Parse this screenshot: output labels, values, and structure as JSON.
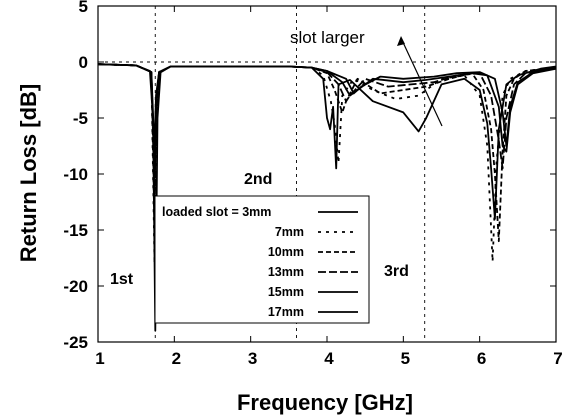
{
  "chart_data": {
    "type": "line",
    "xlabel": "Frequency [GHz]",
    "ylabel": "Return Loss [dB]",
    "xlim": [
      1,
      7
    ],
    "ylim": [
      -25,
      5
    ],
    "x_ticks": [
      1,
      2,
      3,
      4,
      5,
      6,
      7
    ],
    "y_ticks": [
      5,
      0,
      -5,
      -10,
      -15,
      -20,
      -25
    ],
    "grid": false,
    "reference_lines": {
      "vertical_x": [
        1.75,
        3.6,
        5.28
      ],
      "horizontal_y": [
        0
      ]
    },
    "annotations": {
      "first": "1st",
      "second": "2nd",
      "third": "3rd",
      "trend": "slot larger"
    },
    "legend": {
      "position": "center-left",
      "entries": [
        {
          "label": "loaded slot = 3mm",
          "dash": "solid"
        },
        {
          "label": "7mm",
          "dash": "dash-sparse"
        },
        {
          "label": "10mm",
          "dash": "dash"
        },
        {
          "label": "13mm",
          "dash": "dash-long"
        },
        {
          "label": "15mm",
          "dash": "solid"
        },
        {
          "label": "17mm",
          "dash": "solid"
        }
      ]
    },
    "series": [
      {
        "x": [
          1.0,
          1.5,
          1.68,
          1.72,
          1.75,
          1.78,
          1.82,
          1.95,
          2.5,
          3.0,
          3.5,
          3.8,
          3.95,
          4.0,
          4.04,
          4.08,
          4.12,
          4.15,
          4.3,
          4.6,
          5.0,
          5.2,
          5.3,
          5.5,
          5.8,
          6.0,
          6.1,
          6.15,
          6.2,
          6.25,
          6.35,
          6.5,
          6.8,
          7.0
        ],
        "y": [
          -0.2,
          -0.3,
          -0.8,
          -5,
          -24,
          -5,
          -0.9,
          -0.4,
          -0.4,
          -0.4,
          -0.4,
          -0.5,
          -1.5,
          -5,
          -6,
          -4,
          -9.5,
          -2,
          -1.6,
          -3.5,
          -4.5,
          -6.2,
          -5,
          -2,
          -1.5,
          -2.5,
          -5.5,
          -9.5,
          -14,
          -6,
          -2,
          -1.2,
          -0.6,
          -0.4
        ]
      },
      {
        "x": [
          1.0,
          1.5,
          1.7,
          1.74,
          1.76,
          1.8,
          1.95,
          2.5,
          3.0,
          3.5,
          3.8,
          3.95,
          4.05,
          4.1,
          4.15,
          4.2,
          4.35,
          4.6,
          4.9,
          5.2,
          5.5,
          5.8,
          6.0,
          6.1,
          6.17,
          6.22,
          6.3,
          6.4,
          6.6,
          7.0
        ],
        "y": [
          -0.2,
          -0.3,
          -0.9,
          -18,
          -6,
          -1.0,
          -0.4,
          -0.4,
          -0.4,
          -0.4,
          -0.5,
          -1.2,
          -3.5,
          -5.5,
          -9,
          -3,
          -1.5,
          -2.5,
          -3.3,
          -3,
          -1.5,
          -1.2,
          -3,
          -7.5,
          -17.8,
          -9,
          -3,
          -1.5,
          -0.8,
          -0.5
        ]
      },
      {
        "x": [
          1.0,
          1.5,
          1.7,
          1.74,
          1.76,
          1.8,
          1.95,
          2.5,
          3.0,
          3.5,
          3.8,
          4.0,
          4.1,
          4.2,
          4.25,
          4.4,
          4.7,
          5.0,
          5.3,
          5.6,
          5.9,
          6.05,
          6.15,
          6.2,
          6.25,
          6.3,
          6.35,
          6.45,
          6.6,
          7.0
        ],
        "y": [
          -0.2,
          -0.3,
          -0.9,
          -15,
          -5,
          -1.0,
          -0.4,
          -0.4,
          -0.4,
          -0.4,
          -0.5,
          -1.0,
          -2.5,
          -4.5,
          -3.5,
          -1.5,
          -2.8,
          -2.5,
          -2.2,
          -1.5,
          -1.0,
          -2.5,
          -6,
          -10,
          -16,
          -8,
          -3,
          -1.5,
          -0.8,
          -0.5
        ]
      },
      {
        "x": [
          1.0,
          1.5,
          1.7,
          1.74,
          1.76,
          1.8,
          1.95,
          2.5,
          3.0,
          3.5,
          3.8,
          4.0,
          4.15,
          4.25,
          4.3,
          4.5,
          4.8,
          5.1,
          5.4,
          5.7,
          6.0,
          6.15,
          6.25,
          6.3,
          6.35,
          6.45,
          6.6,
          7.0
        ],
        "y": [
          -0.2,
          -0.3,
          -0.9,
          -12,
          -4,
          -0.9,
          -0.4,
          -0.4,
          -0.4,
          -0.4,
          -0.5,
          -0.9,
          -2.0,
          -3.5,
          -3.0,
          -1.5,
          -2.2,
          -2.0,
          -1.8,
          -1.2,
          -1.0,
          -3,
          -7,
          -9.5,
          -5,
          -2,
          -1,
          -0.5
        ]
      },
      {
        "x": [
          1.0,
          1.5,
          1.7,
          1.74,
          1.76,
          1.8,
          1.95,
          2.5,
          3.0,
          3.5,
          3.8,
          4.0,
          4.2,
          4.3,
          4.4,
          4.6,
          5.0,
          5.3,
          5.6,
          5.9,
          6.1,
          6.25,
          6.3,
          6.35,
          6.4,
          6.5,
          6.7,
          7.0
        ],
        "y": [
          -0.2,
          -0.3,
          -0.9,
          -10,
          -3.5,
          -0.9,
          -0.4,
          -0.4,
          -0.4,
          -0.4,
          -0.5,
          -0.8,
          -1.8,
          -3.0,
          -2.5,
          -1.5,
          -1.8,
          -1.6,
          -1.3,
          -1.0,
          -1.2,
          -4,
          -7.5,
          -8,
          -4.5,
          -2,
          -1,
          -0.6
        ]
      },
      {
        "x": [
          1.0,
          1.5,
          1.7,
          1.74,
          1.76,
          1.8,
          1.95,
          2.5,
          3.0,
          3.5,
          3.8,
          4.0,
          4.25,
          4.35,
          4.45,
          4.7,
          5.0,
          5.4,
          5.7,
          6.0,
          6.2,
          6.3,
          6.35,
          6.4,
          6.5,
          6.7,
          7.0
        ],
        "y": [
          -0.2,
          -0.3,
          -0.9,
          -8,
          -3,
          -0.9,
          -0.4,
          -0.4,
          -0.4,
          -0.4,
          -0.5,
          -0.8,
          -1.5,
          -2.8,
          -2.2,
          -1.3,
          -1.5,
          -1.3,
          -1.0,
          -0.9,
          -1.5,
          -4.5,
          -7.5,
          -4,
          -1.8,
          -0.9,
          -0.5
        ]
      }
    ]
  }
}
